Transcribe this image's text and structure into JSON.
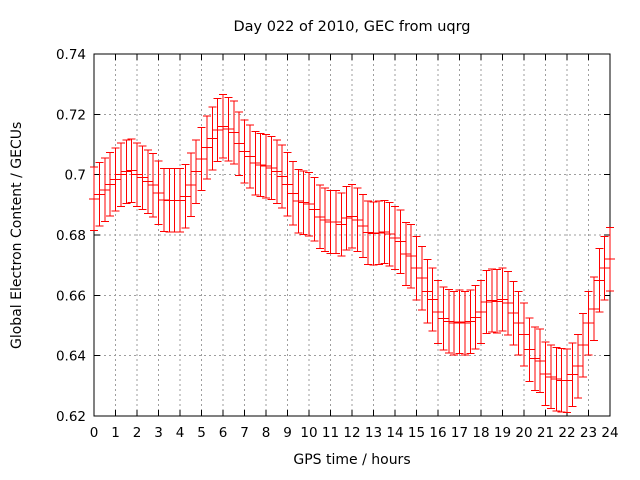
{
  "chart_data": {
    "type": "scatter",
    "style": "points-with-y-errorbars",
    "title": "Day 022 of 2010, GEC from uqrg",
    "xlabel": "GPS time / hours",
    "ylabel": "Global Electron Content / GECUs",
    "xlim": [
      0,
      24
    ],
    "ylim": [
      0.62,
      0.74
    ],
    "grid": true,
    "legend": null,
    "x_ticks": [
      0,
      1,
      2,
      3,
      4,
      5,
      6,
      7,
      8,
      9,
      10,
      11,
      12,
      13,
      14,
      15,
      16,
      17,
      18,
      19,
      20,
      21,
      22,
      23,
      24
    ],
    "x_tick_labels": [
      "0",
      "1",
      "2",
      "3",
      "4",
      "5",
      "6",
      "7",
      "8",
      "9",
      "10",
      "11",
      "12",
      "13",
      "14",
      "15",
      "16",
      "17",
      "18",
      "19",
      "20",
      "21",
      "22",
      "23",
      "24"
    ],
    "y_ticks": [
      0.62,
      0.64,
      0.66,
      0.68,
      0.7,
      0.72,
      0.74
    ],
    "y_tick_labels": [
      "0.62",
      "0.64",
      "0.66",
      "0.68",
      "0.7",
      "0.72",
      "0.74"
    ],
    "x_hours": {
      "start": 0,
      "step": 0.25,
      "count": 97
    },
    "error_half": 0.0105,
    "values": [
      0.692,
      0.6935,
      0.695,
      0.6968,
      0.6984,
      0.7,
      0.701,
      0.7013,
      0.7,
      0.699,
      0.6977,
      0.6965,
      0.694,
      0.6916,
      0.6915,
      0.6915,
      0.6915,
      0.6928,
      0.6966,
      0.701,
      0.7052,
      0.709,
      0.712,
      0.7148,
      0.716,
      0.7151,
      0.714,
      0.7103,
      0.7077,
      0.706,
      0.7038,
      0.7032,
      0.7028,
      0.7022,
      0.701,
      0.6994,
      0.6968,
      0.6938,
      0.6912,
      0.6907,
      0.6902,
      0.6885,
      0.686,
      0.685,
      0.6843,
      0.6843,
      0.6835,
      0.6856,
      0.6862,
      0.685,
      0.683,
      0.6808,
      0.6805,
      0.6807,
      0.681,
      0.6803,
      0.679,
      0.6778,
      0.6737,
      0.673,
      0.669,
      0.6657,
      0.6613,
      0.6586,
      0.6545,
      0.6523,
      0.6514,
      0.6508,
      0.6512,
      0.6508,
      0.6513,
      0.6527,
      0.6545,
      0.6578,
      0.6583,
      0.658,
      0.6586,
      0.6574,
      0.6541,
      0.6508,
      0.647,
      0.642,
      0.639,
      0.6383,
      0.634,
      0.633,
      0.6322,
      0.6318,
      0.6317,
      0.6337,
      0.6365,
      0.6435,
      0.6508,
      0.6555,
      0.665,
      0.669,
      0.672
    ],
    "colors": {
      "series": "#ff0000",
      "axis": "#000000",
      "grid": "#9e9e9e",
      "background": "#ffffff",
      "text": "#000000"
    }
  }
}
